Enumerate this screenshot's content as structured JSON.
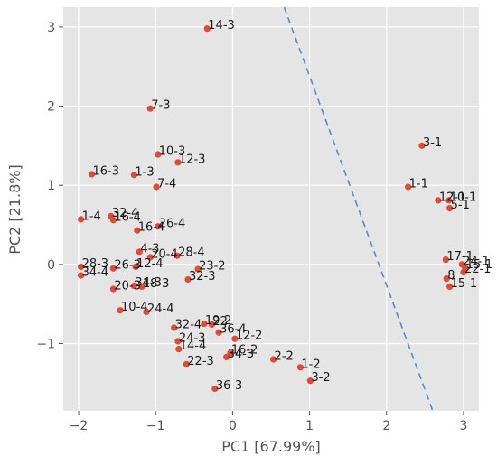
{
  "chart_data": {
    "type": "scatter",
    "title": "",
    "xlabel": "PC1 [67.99%]",
    "ylabel": "PC2 [21.8%]",
    "xlim": [
      -2.2,
      3.2
    ],
    "ylim": [
      -1.85,
      3.25
    ],
    "xticks": [
      -2,
      -1,
      0,
      1,
      2,
      3
    ],
    "yticks": [
      -1,
      0,
      1,
      2,
      3
    ],
    "grid": true,
    "legend": "none",
    "background_color": "#e5e5e5",
    "point_color": "#e24a33",
    "decision_line": {
      "color": "#4c8fd6",
      "style": "dashed",
      "from": [
        0.67,
        3.25
      ],
      "to": [
        2.6,
        -1.85
      ]
    },
    "points": [
      {
        "label": "14-3",
        "x": -0.33,
        "y": 2.98
      },
      {
        "label": "7-3",
        "x": -1.07,
        "y": 1.97
      },
      {
        "label": "10-3",
        "x": -0.97,
        "y": 1.39
      },
      {
        "label": "12-3",
        "x": -0.71,
        "y": 1.29
      },
      {
        "label": "16-3",
        "x": -1.83,
        "y": 1.14
      },
      {
        "label": "1-3",
        "x": -1.28,
        "y": 1.13
      },
      {
        "label": "7-4",
        "x": -0.99,
        "y": 0.98
      },
      {
        "label": "32-4",
        "x": -1.58,
        "y": 0.61
      },
      {
        "label": "16-4",
        "x": -1.55,
        "y": 0.56
      },
      {
        "label": "1-4",
        "x": -1.97,
        "y": 0.57
      },
      {
        "label": "16-4",
        "x": -1.24,
        "y": 0.43
      },
      {
        "label": "26-4",
        "x": -0.97,
        "y": 0.48
      },
      {
        "label": "4-3",
        "x": -1.21,
        "y": 0.16
      },
      {
        "label": "20-4",
        "x": -1.07,
        "y": 0.09
      },
      {
        "label": "28-4",
        "x": -0.72,
        "y": 0.11
      },
      {
        "label": "28-3",
        "x": -1.97,
        "y": -0.03
      },
      {
        "label": "34-4",
        "x": -1.97,
        "y": -0.14
      },
      {
        "label": "26-3",
        "x": -1.55,
        "y": -0.05
      },
      {
        "label": "12-4",
        "x": -1.26,
        "y": -0.03
      },
      {
        "label": "23-2",
        "x": -0.45,
        "y": -0.06
      },
      {
        "label": "32-3",
        "x": -0.58,
        "y": -0.19
      },
      {
        "label": "20-3",
        "x": -1.55,
        "y": -0.31
      },
      {
        "label": "34-3",
        "x": -1.28,
        "y": -0.27
      },
      {
        "label": "18-3",
        "x": -1.18,
        "y": -0.28
      },
      {
        "label": "10-4",
        "x": -1.46,
        "y": -0.58
      },
      {
        "label": "24-4",
        "x": -1.12,
        "y": -0.6
      },
      {
        "label": "19-2",
        "x": -0.37,
        "y": -0.75
      },
      {
        "label": "32-4",
        "x": -0.76,
        "y": -0.8
      },
      {
        "label": "22",
        "x": -0.27,
        "y": -0.76
      },
      {
        "label": "36-4",
        "x": -0.18,
        "y": -0.86
      },
      {
        "label": "12-2",
        "x": 0.03,
        "y": -0.94
      },
      {
        "label": "24-3",
        "x": -0.71,
        "y": -0.97
      },
      {
        "label": "14-4",
        "x": -0.7,
        "y": -1.07
      },
      {
        "label": "16-2",
        "x": -0.03,
        "y": -1.12
      },
      {
        "label": "34-3",
        "x": -0.08,
        "y": -1.17
      },
      {
        "label": "22-3",
        "x": -0.6,
        "y": -1.26
      },
      {
        "label": "2-2",
        "x": 0.53,
        "y": -1.2
      },
      {
        "label": "1-2",
        "x": 0.88,
        "y": -1.3
      },
      {
        "label": "3-2",
        "x": 1.01,
        "y": -1.47
      },
      {
        "label": "36-3",
        "x": -0.23,
        "y": -1.57
      },
      {
        "label": "3-1",
        "x": 2.46,
        "y": 1.5
      },
      {
        "label": "1-1",
        "x": 2.28,
        "y": 0.98
      },
      {
        "label": "12-1",
        "x": 2.67,
        "y": 0.81
      },
      {
        "label": "10-1",
        "x": 2.81,
        "y": 0.81
      },
      {
        "label": "5-1",
        "x": 2.82,
        "y": 0.71
      },
      {
        "label": "17-1",
        "x": 2.77,
        "y": 0.06
      },
      {
        "label": "24-1",
        "x": 2.98,
        "y": 0.0
      },
      {
        "label": "15-1",
        "x": 3.02,
        "y": -0.04
      },
      {
        "label": "22-1",
        "x": 3.0,
        "y": -0.1
      },
      {
        "label": "8",
        "x": 2.78,
        "y": -0.18
      },
      {
        "label": "15-1",
        "x": 2.82,
        "y": -0.28
      }
    ]
  }
}
